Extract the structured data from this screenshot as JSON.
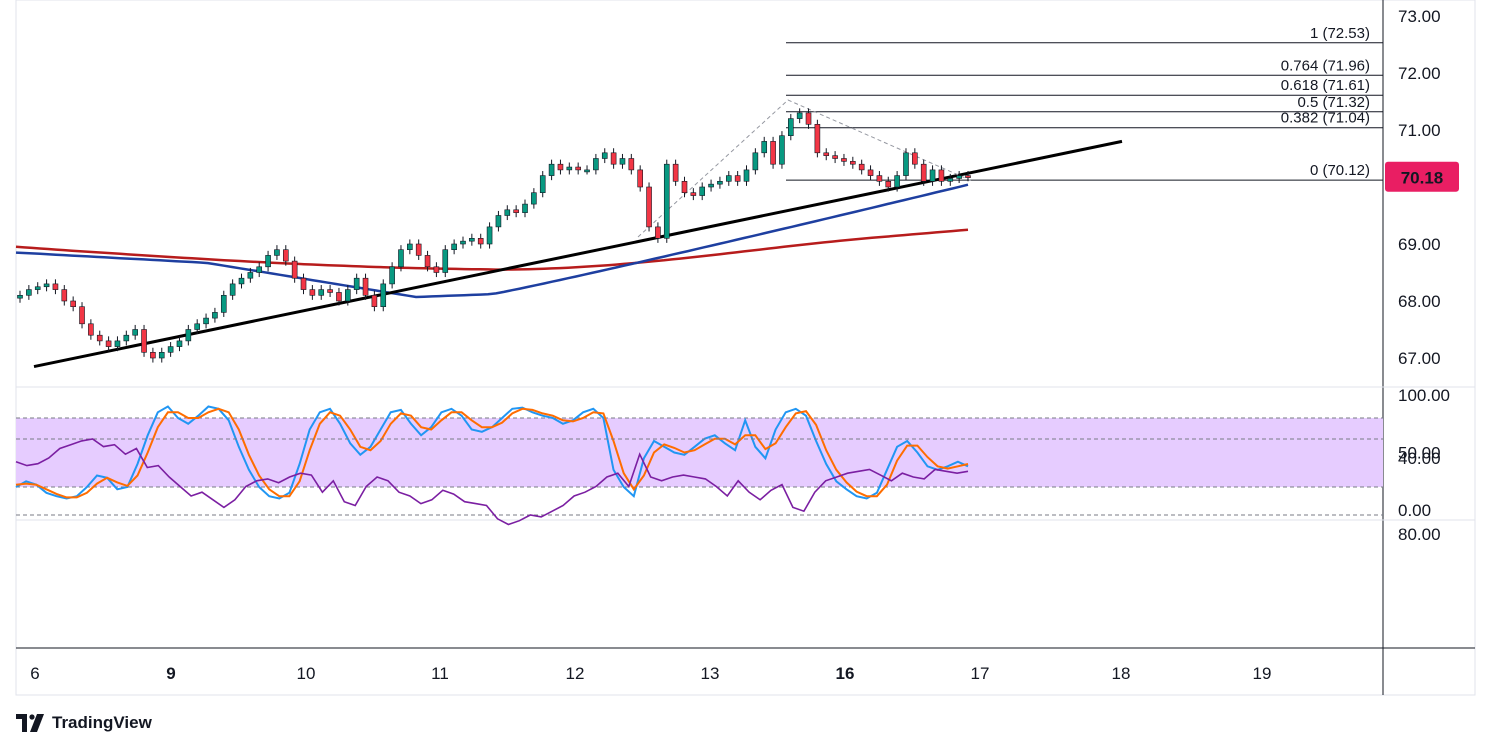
{
  "brand": {
    "name": "TradingView",
    "logo_icon": "tradingview-logo-icon"
  },
  "colors": {
    "up_candle": "#089981",
    "down_candle": "#f23645",
    "wick": "#131722",
    "ma_fast": "#1e3fa0",
    "ma_slow": "#b71c1c",
    "trendline": "#000000",
    "price_tag": "#e91e63",
    "stoch_k": "#2196f3",
    "stoch_d": "#ff6d00",
    "stoch_band": "#e6ccff",
    "rsi_line": "#7b1fa2",
    "rsi_band": "#f3e5ff"
  },
  "chart_data": [
    {
      "type": "candlestick",
      "panel": "price",
      "y_ticks": [
        "73.00",
        "72.00",
        "71.00",
        "69.00",
        "68.00",
        "67.00"
      ],
      "ylim": [
        66.5,
        73.25
      ],
      "x_ticks": [
        "6",
        "9",
        "10",
        "11",
        "12",
        "13",
        "16",
        "17",
        "18",
        "19"
      ],
      "last_price": "70.18",
      "ohlc_closes": [
        68.1,
        68.2,
        68.25,
        68.3,
        68.2,
        68.0,
        67.9,
        67.6,
        67.4,
        67.3,
        67.2,
        67.3,
        67.4,
        67.5,
        67.1,
        67.0,
        67.1,
        67.2,
        67.3,
        67.5,
        67.6,
        67.7,
        67.8,
        68.1,
        68.3,
        68.4,
        68.5,
        68.6,
        68.8,
        68.9,
        68.7,
        68.4,
        68.2,
        68.1,
        68.2,
        68.15,
        68.0,
        68.2,
        68.4,
        68.1,
        67.9,
        68.3,
        68.6,
        68.9,
        69.0,
        68.8,
        68.6,
        68.5,
        68.9,
        69.0,
        69.05,
        69.1,
        69.0,
        69.3,
        69.5,
        69.6,
        69.55,
        69.7,
        69.9,
        70.2,
        70.4,
        70.3,
        70.35,
        70.3,
        70.3,
        70.5,
        70.6,
        70.4,
        70.5,
        70.3,
        70.0,
        69.3,
        69.1,
        70.4,
        70.1,
        69.9,
        69.85,
        70.0,
        70.05,
        70.1,
        70.2,
        70.1,
        70.3,
        70.6,
        70.8,
        70.4,
        70.9,
        71.2,
        71.3,
        71.1,
        70.6,
        70.55,
        70.5,
        70.45,
        70.4,
        70.3,
        70.2,
        70.1,
        70.0,
        70.2,
        70.6,
        70.4,
        70.1,
        70.3,
        70.1,
        70.15,
        70.2,
        70.18
      ],
      "fib_levels": [
        {
          "ratio": "1",
          "value": "72.53"
        },
        {
          "ratio": "0.764",
          "value": "71.96"
        },
        {
          "ratio": "0.618",
          "value": "71.61"
        },
        {
          "ratio": "0.5",
          "value": "71.32"
        },
        {
          "ratio": "0.382",
          "value": "71.04"
        },
        {
          "ratio": "0",
          "value": "70.12"
        }
      ],
      "trendline": {
        "x": [
          "6",
          "18"
        ],
        "y": [
          66.85,
          70.8
        ]
      }
    },
    {
      "type": "line",
      "panel": "stochastic",
      "y_ticks": [
        "100.00",
        "50.00",
        "0.00"
      ],
      "ylim": [
        0,
        100
      ],
      "band": [
        20,
        80
      ],
      "series": [
        {
          "key": "k",
          "values": [
            20,
            25,
            22,
            15,
            12,
            10,
            12,
            20,
            30,
            28,
            18,
            20,
            40,
            65,
            85,
            90,
            80,
            75,
            82,
            90,
            88,
            78,
            55,
            35,
            20,
            12,
            10,
            15,
            40,
            70,
            85,
            88,
            75,
            58,
            48,
            55,
            70,
            85,
            87,
            75,
            65,
            72,
            85,
            88,
            82,
            70,
            68,
            72,
            80,
            88,
            89,
            85,
            82,
            80,
            75,
            78,
            85,
            88,
            80,
            35,
            20,
            12,
            45,
            60,
            55,
            50,
            48,
            55,
            62,
            65,
            58,
            52,
            78,
            55,
            45,
            70,
            85,
            88,
            82,
            60,
            40,
            25,
            18,
            12,
            10,
            15,
            35,
            55,
            60,
            50,
            38,
            35,
            38,
            42,
            38
          ]
        },
        {
          "key": "d",
          "values": [
            22,
            23,
            22,
            18,
            14,
            11,
            11,
            15,
            23,
            28,
            24,
            21,
            30,
            50,
            72,
            85,
            85,
            80,
            80,
            85,
            88,
            85,
            70,
            48,
            30,
            18,
            12,
            12,
            25,
            52,
            75,
            85,
            82,
            70,
            55,
            52,
            60,
            75,
            84,
            82,
            72,
            70,
            78,
            85,
            85,
            78,
            72,
            72,
            76,
            84,
            88,
            87,
            84,
            82,
            78,
            77,
            80,
            85,
            84,
            60,
            32,
            18,
            30,
            50,
            57,
            54,
            50,
            52,
            57,
            62,
            62,
            57,
            65,
            65,
            53,
            58,
            72,
            84,
            86,
            74,
            52,
            35,
            24,
            16,
            12,
            12,
            22,
            43,
            56,
            56,
            46,
            38,
            36,
            38,
            40
          ]
        }
      ]
    },
    {
      "type": "line",
      "panel": "rsi",
      "y_ticks": [
        "80.00",
        "40.00"
      ],
      "ylim": [
        25,
        90
      ],
      "band": [
        30,
        70
      ],
      "series": [
        {
          "key": "rsi",
          "values": [
            42,
            44,
            43,
            40,
            35,
            33,
            31,
            30,
            34,
            33,
            38,
            35,
            45,
            44,
            50,
            55,
            60,
            58,
            62,
            66,
            62,
            55,
            52,
            51,
            53,
            50,
            48,
            49,
            58,
            52,
            63,
            65,
            55,
            50,
            52,
            58,
            60,
            64,
            62,
            57,
            59,
            63,
            64,
            65,
            72,
            75,
            73,
            70,
            71,
            68,
            65,
            60,
            58,
            55,
            50,
            48,
            55,
            38,
            50,
            52,
            50,
            49,
            50,
            51,
            55,
            60,
            52,
            58,
            62,
            57,
            54,
            66,
            68,
            58,
            52,
            50,
            48,
            47,
            46,
            49,
            52,
            48,
            50,
            51,
            46,
            47,
            48,
            47
          ]
        }
      ]
    }
  ]
}
